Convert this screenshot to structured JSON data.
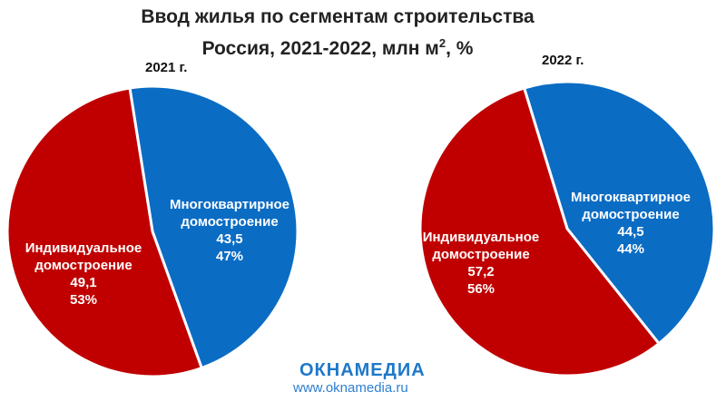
{
  "title": {
    "line1": "Ввод жилья по сегментам строительства",
    "line2_prefix": "Россия, 2021-2022, млн м",
    "line2_sup": "2",
    "line2_suffix": ", %"
  },
  "colors": {
    "individual": "#c00000",
    "apartment": "#0b6cc4",
    "brand": "#1f78c8"
  },
  "chart_data": [
    {
      "type": "pie",
      "title": "2021 г.",
      "slices": [
        {
          "label_lines": [
            "Многоквартирное",
            "домостроение"
          ],
          "value": 43.5,
          "value_text": "43,5",
          "percent": 47,
          "percent_text": "47%"
        },
        {
          "label_lines": [
            "Индивидуальное",
            "домостроение"
          ],
          "value": 49.1,
          "value_text": "49,1",
          "percent": 53,
          "percent_text": "53%"
        }
      ]
    },
    {
      "type": "pie",
      "title": "2022 г.",
      "slices": [
        {
          "label_lines": [
            "Многоквартирное",
            "домостроение"
          ],
          "value": 44.5,
          "value_text": "44,5",
          "percent": 44,
          "percent_text": "44%"
        },
        {
          "label_lines": [
            "Индивидуальное",
            "домостроение"
          ],
          "value": 57.2,
          "value_text": "57,2",
          "percent": 56,
          "percent_text": "56%"
        }
      ]
    }
  ],
  "watermark": {
    "brand": "ОКНАМЕДИА",
    "url": "www.oknamedia.ru"
  }
}
